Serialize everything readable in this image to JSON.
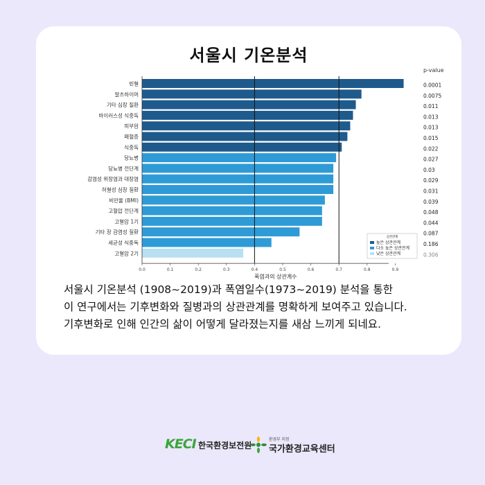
{
  "title": "서울시 기온분석",
  "description": [
    "서울시 기온분석 (1908~2019)과 폭염일수(1973~2019) 분석을 통한",
    "이 연구에서는 기후변화와 질병과의 상관관계를 명확하게 보여주고 있습니다.",
    "기후변화로 인해 인간의 삶이 어떻게 달라졌는지를 새삼 느끼게 되네요."
  ],
  "footer": {
    "logo1": "KECI",
    "org1": "한국환경보전원",
    "org2_small": "환경부 지정",
    "org2": "국가환경교육센터"
  },
  "colors": {
    "high": "#1f5a8c",
    "medium": "#2e9bd6",
    "low": "#b8e0f2",
    "background": "#ece8fb",
    "card": "#ffffff"
  },
  "chart_data": {
    "type": "bar",
    "orientation": "horizontal",
    "categories": [
      "빈혈",
      "알츠하이머",
      "기타 심장 질환",
      "바이러스성 식중독",
      "피부암",
      "패혈증",
      "식중독",
      "당뇨병",
      "당뇨병 전단계",
      "감염성 위장염과 대장염",
      "허혈성 심장 질환",
      "비만율 (BMI)",
      "고혈압 전단계",
      "고혈압 1기",
      "기타 장 감염성 질환",
      "세균성 식중독",
      "고혈압 2기"
    ],
    "values": [
      0.93,
      0.78,
      0.76,
      0.75,
      0.74,
      0.73,
      0.71,
      0.69,
      0.68,
      0.68,
      0.68,
      0.65,
      0.64,
      0.64,
      0.56,
      0.46,
      0.36
    ],
    "groups": [
      "high",
      "high",
      "high",
      "high",
      "high",
      "high",
      "high",
      "medium",
      "medium",
      "medium",
      "medium",
      "medium",
      "medium",
      "medium",
      "medium",
      "medium",
      "low"
    ],
    "p_value_header": "p-value",
    "p_values": [
      "0.0001",
      "0.0075",
      "0.011",
      "0.013",
      "0.013",
      "0.015",
      "0.022",
      "0.027",
      "0.03",
      "0.029",
      "0.031",
      "0.039",
      "0.048",
      "0.044",
      "0.087",
      "0.186",
      "0.306"
    ],
    "xlabel": "폭염과의 상관계수",
    "ylabel": "",
    "xlim": [
      0,
      1.0
    ],
    "xticks": [
      "0.0",
      "0.1",
      "0.2",
      "0.3",
      "0.4",
      "0.5",
      "0.6",
      "0.7",
      "0.8",
      "0.9"
    ],
    "reference_lines": [
      0.4,
      0.7
    ],
    "legend": {
      "title": "상관관계",
      "placement": "bottom-right",
      "items": [
        {
          "label": "높은 상관관계",
          "group": "high"
        },
        {
          "label": "다소 높은 상관관계",
          "group": "medium"
        },
        {
          "label": "낮은 상관관계",
          "group": "low"
        }
      ]
    }
  }
}
